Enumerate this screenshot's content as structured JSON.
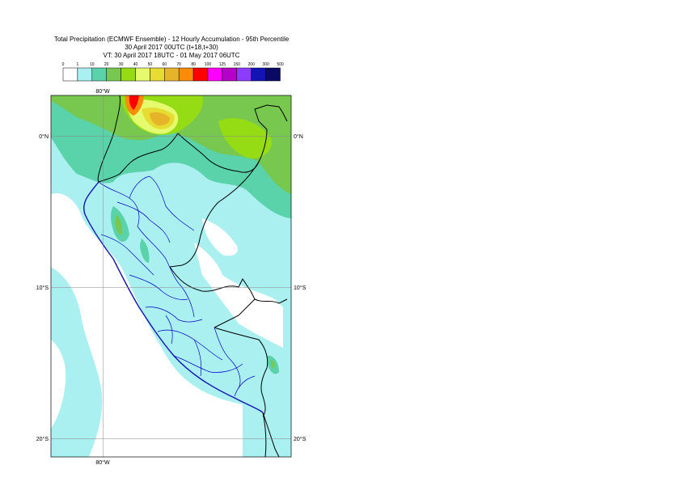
{
  "title": {
    "line1": "Total Precipitation (ECMWF Ensemble) - 12 Hourly Accumulation - 95th Percentile",
    "line2": "30 April 2017 00UTC (t+18,t+30)",
    "line3": "VT: 30 April 2017 18UTC - 01 May 2017 06UTC"
  },
  "legend": {
    "thresholds": [
      "0",
      "1",
      "10",
      "20",
      "30",
      "40",
      "50",
      "60",
      "70",
      "80",
      "100",
      "125",
      "150",
      "200",
      "300",
      "500"
    ],
    "colors": [
      "#ffffff",
      "#aaf0f0",
      "#5ad2aa",
      "#78c850",
      "#96dc14",
      "#e6fa6e",
      "#e6dc32",
      "#e6b428",
      "#fa8c0a",
      "#ff0000",
      "#ff00ff",
      "#b400c8",
      "#8c3cff",
      "#1414b4",
      "#0a0a64"
    ]
  },
  "map": {
    "lon_top": "80°W",
    "lon_bottom": "80°W",
    "lat_labels": [
      {
        "left": "0°N",
        "right": "0°N"
      },
      {
        "left": "10°S",
        "right": "10°S"
      },
      {
        "left": "20°S",
        "right": "20°S"
      }
    ],
    "colors": {
      "ocean": "#aaf0f0",
      "land_low": "#aaf0f0",
      "band2": "#5ad2aa",
      "band3": "#78c850",
      "band4": "#96dc14",
      "band5": "#e6fa6e",
      "band6": "#e6dc32",
      "band7": "#e6b428",
      "band8": "#fa8c0a",
      "band9": "#ff0000",
      "country_border": "#000000",
      "region_border": "#0000c8",
      "grid": "#888888"
    }
  }
}
